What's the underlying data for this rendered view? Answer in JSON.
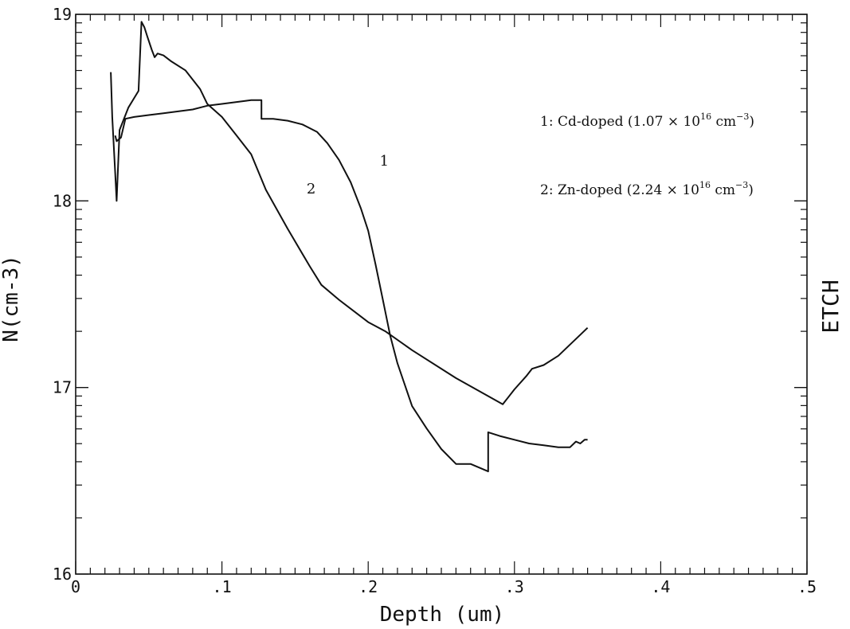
{
  "chart_data": {
    "type": "line",
    "xlabel": "Depth (um)",
    "ylabel": "N(cm-3)",
    "right_label": "ETCH",
    "xlim": [
      0,
      0.5
    ],
    "ylim": [
      16,
      19
    ],
    "x_ticks": [
      "0",
      ".1",
      ".2",
      ".3",
      ".4",
      ".5"
    ],
    "y_ticks": [
      "16",
      "17",
      "18",
      "19"
    ],
    "y_tick_values": [
      16,
      17,
      18,
      19
    ],
    "x_tick_values": [
      0,
      0.1,
      0.2,
      0.3,
      0.4,
      0.5
    ],
    "grid": false,
    "legend": [
      {
        "number": "1",
        "text": "1: Cd-doped (1.07 × 10",
        "sup": "16",
        "unit": " cm",
        "unit_sup": "−3",
        "close": ")"
      },
      {
        "number": "2",
        "text": "2: Zn-doped (2.24 × 10",
        "sup": "16",
        "unit": " cm",
        "unit_sup": "−3",
        "close": ")"
      }
    ],
    "series": [
      {
        "label": "1",
        "color": "#111111",
        "x": [
          0.027,
          0.028,
          0.031,
          0.034,
          0.04,
          0.05,
          0.06,
          0.07,
          0.08,
          0.09,
          0.1,
          0.11,
          0.12,
          0.127,
          0.127,
          0.135,
          0.145,
          0.155,
          0.165,
          0.172,
          0.18,
          0.188,
          0.195,
          0.2,
          0.205,
          0.21,
          0.215,
          0.22,
          0.23,
          0.24,
          0.25,
          0.26,
          0.27,
          0.282,
          0.282,
          0.29,
          0.3,
          0.31,
          0.32,
          0.33,
          0.338,
          0.342,
          0.345,
          0.348,
          0.35
        ],
        "y": [
          18.35,
          18.32,
          18.34,
          18.44,
          18.45,
          18.46,
          18.47,
          18.48,
          18.49,
          18.51,
          18.52,
          18.53,
          18.54,
          18.54,
          18.44,
          18.44,
          18.43,
          18.41,
          18.37,
          18.31,
          18.22,
          18.1,
          17.96,
          17.84,
          17.66,
          17.47,
          17.28,
          17.13,
          16.9,
          16.78,
          16.67,
          16.59,
          16.59,
          16.55,
          16.76,
          16.74,
          16.72,
          16.7,
          16.69,
          16.68,
          16.68,
          16.71,
          16.7,
          16.72,
          16.72
        ]
      },
      {
        "label": "2",
        "color": "#111111",
        "x": [
          0.024,
          0.025,
          0.027,
          0.028,
          0.03,
          0.036,
          0.043,
          0.045,
          0.047,
          0.049,
          0.052,
          0.054,
          0.056,
          0.06,
          0.065,
          0.075,
          0.085,
          0.09,
          0.1,
          0.11,
          0.12,
          0.13,
          0.145,
          0.16,
          0.168,
          0.18,
          0.2,
          0.212,
          0.23,
          0.26,
          0.292,
          0.3,
          0.308,
          0.312,
          0.32,
          0.33,
          0.35
        ],
        "y": [
          18.69,
          18.45,
          18.15,
          18.0,
          18.38,
          18.5,
          18.59,
          18.96,
          18.93,
          18.88,
          18.81,
          18.77,
          18.79,
          18.78,
          18.75,
          18.7,
          18.6,
          18.52,
          18.45,
          18.35,
          18.25,
          18.06,
          17.85,
          17.65,
          17.55,
          17.47,
          17.35,
          17.3,
          17.2,
          17.05,
          16.91,
          16.99,
          17.06,
          17.1,
          17.12,
          17.17,
          17.32
        ]
      }
    ],
    "annotations": [
      {
        "text": "1",
        "x": 0.211,
        "y": 18.19
      },
      {
        "text": "2",
        "x": 0.161,
        "y": 18.04
      }
    ]
  }
}
